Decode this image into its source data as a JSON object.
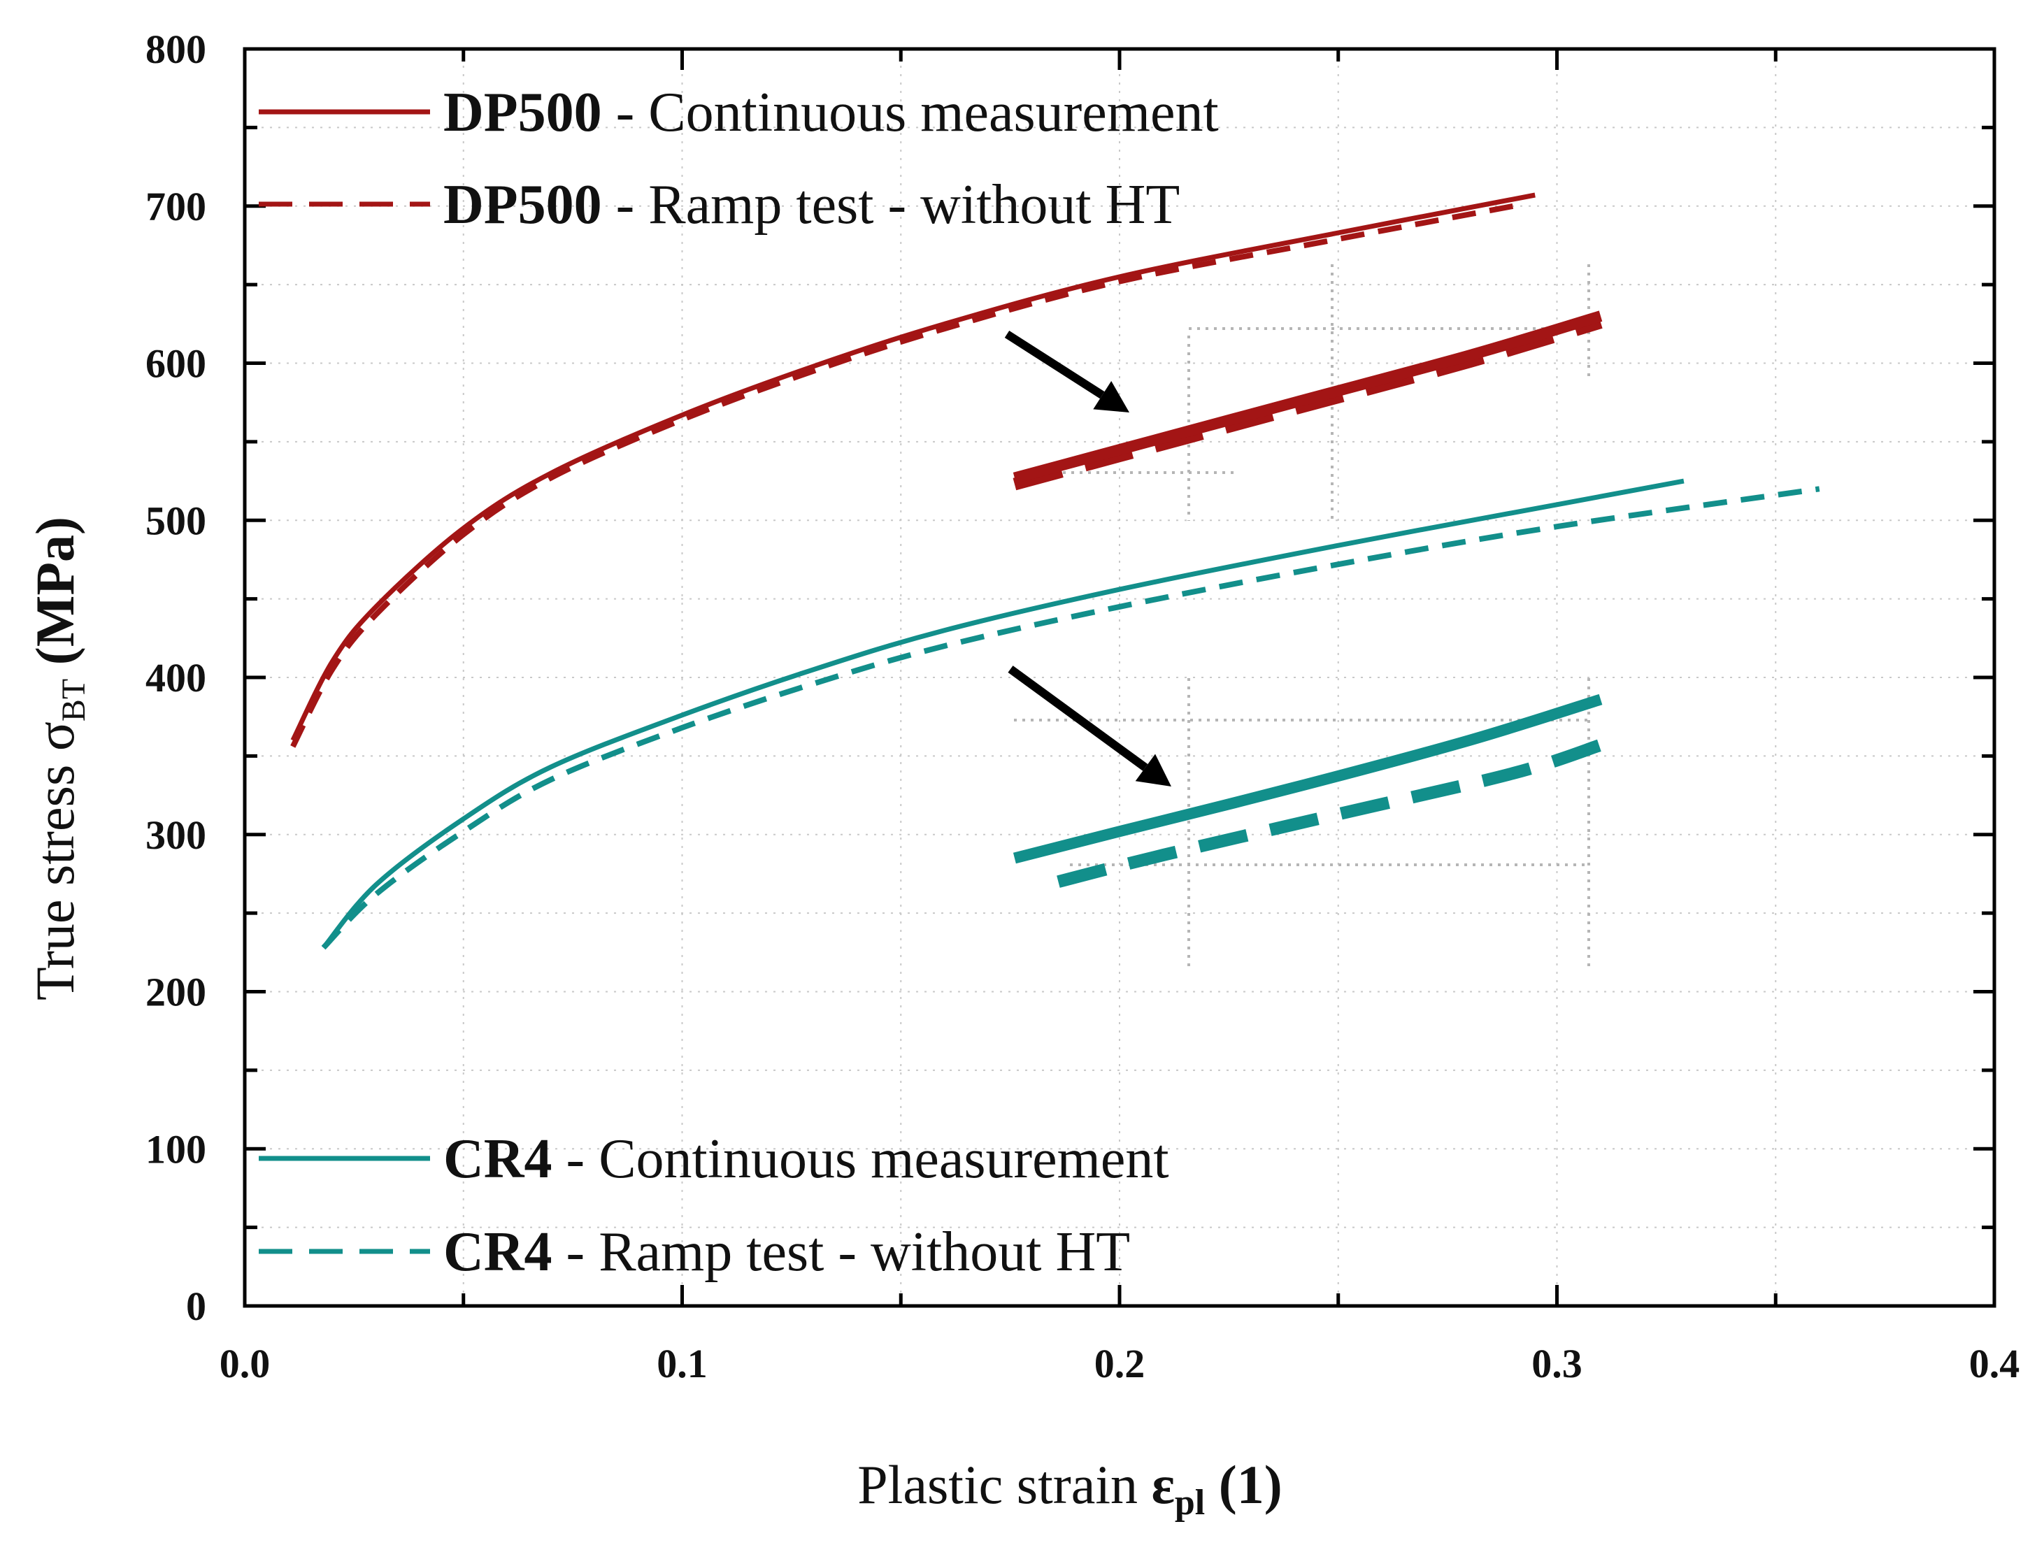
{
  "chart_data": {
    "type": "line",
    "title": "",
    "xlabel": {
      "main": "Plastic strain ",
      "symbol": "ε",
      "sub": "pl",
      "unit": " (1)"
    },
    "ylabel": {
      "main": "True stress σ",
      "sub": "BT",
      "unit": " (MPa)"
    },
    "xlim": [
      0.0,
      0.4
    ],
    "ylim": [
      0,
      800
    ],
    "x_ticks": [
      0.0,
      0.1,
      0.2,
      0.3,
      0.4
    ],
    "x_tick_labels": [
      "0.0",
      "0.1",
      "0.2",
      "0.3",
      "0.4"
    ],
    "y_ticks": [
      0,
      100,
      200,
      300,
      400,
      500,
      600,
      700,
      800
    ],
    "y_tick_labels": [
      "0",
      "100",
      "200",
      "300",
      "400",
      "500",
      "600",
      "700",
      "800"
    ],
    "grid": true,
    "colors": {
      "dp500": "#a31515",
      "cr4": "#128f8b",
      "arrow": "#000000",
      "guide": "#b5b5b5"
    },
    "series": [
      {
        "name": "DP500 - Continuous measurement",
        "material": "DP500",
        "desc": " - Continuous measurement",
        "style": "solid",
        "color": "#a31515",
        "x": [
          0.011,
          0.02,
          0.03,
          0.05,
          0.07,
          0.1,
          0.13,
          0.16,
          0.2,
          0.25,
          0.295
        ],
        "y": [
          360,
          410,
          445,
          495,
          530,
          567,
          598,
          625,
          655,
          683,
          707
        ]
      },
      {
        "name": "DP500 - Ramp test - without HT",
        "material": "DP500",
        "desc": " - Ramp test - without HT",
        "style": "dashed",
        "color": "#a31515",
        "x": [
          0.011,
          0.02,
          0.03,
          0.05,
          0.07,
          0.1,
          0.13,
          0.16,
          0.2,
          0.25,
          0.29
        ],
        "y": [
          356,
          405,
          440,
          491,
          527,
          564,
          595,
          622,
          652,
          679,
          700
        ]
      },
      {
        "name": "CR4 - Continuous measurement",
        "material": "CR4",
        "desc": " - Continuous measurement",
        "style": "solid",
        "color": "#128f8b",
        "x": [
          0.018,
          0.03,
          0.05,
          0.07,
          0.1,
          0.13,
          0.16,
          0.2,
          0.25,
          0.3,
          0.329
        ],
        "y": [
          228,
          268,
          310,
          343,
          376,
          405,
          430,
          456,
          484,
          510,
          525
        ]
      },
      {
        "name": "CR4 - Ramp test - without HT",
        "material": "CR4",
        "desc": " - Ramp test - without HT",
        "style": "dashed",
        "color": "#128f8b",
        "x": [
          0.018,
          0.03,
          0.05,
          0.07,
          0.1,
          0.13,
          0.16,
          0.2,
          0.25,
          0.3,
          0.36
        ],
        "y": [
          228,
          262,
          302,
          335,
          368,
          396,
          420,
          445,
          472,
          496,
          520
        ]
      }
    ],
    "insets": [
      {
        "material": "DP500",
        "color": "#a31515",
        "xlim": [
          0.175,
          0.31
        ],
        "solid": [
          [
            0.176,
            527
          ],
          [
            0.2,
            545
          ],
          [
            0.24,
            575
          ],
          [
            0.28,
            605
          ],
          [
            0.31,
            630
          ]
        ],
        "dashed": [
          [
            0.176,
            523
          ],
          [
            0.2,
            541
          ],
          [
            0.24,
            571
          ],
          [
            0.28,
            601
          ],
          [
            0.31,
            626
          ]
        ]
      },
      {
        "material": "CR4",
        "color": "#128f8b",
        "xlim": [
          0.175,
          0.31
        ],
        "solid": [
          [
            0.176,
            285
          ],
          [
            0.2,
            302
          ],
          [
            0.24,
            330
          ],
          [
            0.28,
            360
          ],
          [
            0.31,
            386
          ]
        ],
        "dashed": [
          [
            0.186,
            270
          ],
          [
            0.21,
            287
          ],
          [
            0.25,
            313
          ],
          [
            0.29,
            339
          ],
          [
            0.31,
            357
          ]
        ]
      }
    ],
    "legend": [
      {
        "material": "DP500",
        "desc": " - Continuous measurement",
        "style": "solid",
        "color": "#a31515",
        "position": "top-left"
      },
      {
        "material": "DP500",
        "desc": " - Ramp test - without HT",
        "style": "dashed",
        "color": "#a31515",
        "position": "top-left"
      },
      {
        "material": "CR4",
        "desc": " - Continuous measurement",
        "style": "solid",
        "color": "#128f8b",
        "position": "bottom-left"
      },
      {
        "material": "CR4",
        "desc": " - Ramp test - without HT",
        "style": "dashed",
        "color": "#128f8b",
        "position": "bottom-left"
      }
    ]
  }
}
